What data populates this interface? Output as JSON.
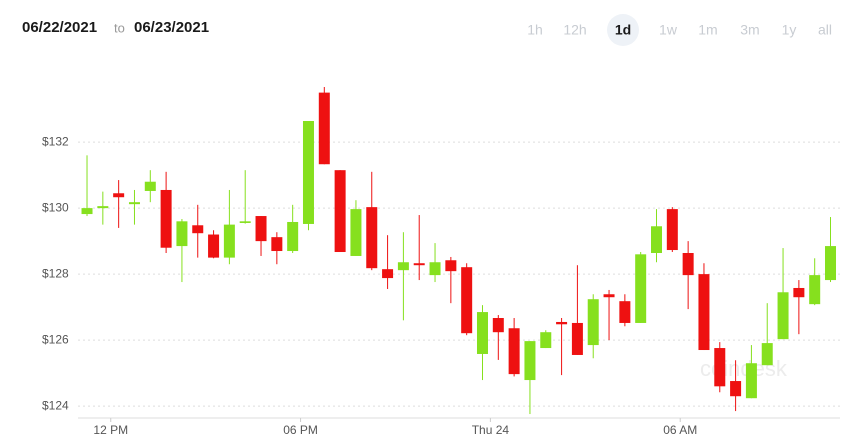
{
  "header": {
    "from": "06/22/2021",
    "separator": "to",
    "to": "06/23/2021"
  },
  "timeframes": [
    "1h",
    "12h",
    "1d",
    "1w",
    "1m",
    "3m",
    "1y",
    "all"
  ],
  "selected_timeframe": 2,
  "watermark": "coindesk",
  "chart_data": {
    "type": "candlestick",
    "up_color": "#86e01e",
    "down_color": "#ee1111",
    "grid": true,
    "open": [
      129.82,
      130.0,
      130.45,
      130.12,
      130.52,
      130.55,
      128.85,
      129.48,
      129.2,
      128.5,
      129.55,
      129.76,
      129.12,
      128.7,
      129.52,
      133.5,
      131.15,
      128.55,
      130.03,
      128.15,
      128.12,
      128.33,
      127.97,
      128.42,
      128.21,
      125.58,
      126.67,
      126.36,
      124.79,
      125.76,
      126.55,
      126.52,
      125.85,
      127.39,
      127.18,
      126.52,
      128.64,
      129.97,
      128.64,
      128.0,
      125.76,
      124.76,
      124.24,
      125.24,
      126.03,
      127.58,
      127.09,
      127.82
    ],
    "high": [
      131.6,
      130.5,
      130.85,
      130.55,
      131.15,
      131.1,
      129.67,
      130.1,
      129.33,
      130.55,
      131.15,
      129.76,
      129.27,
      130.1,
      132.64,
      133.67,
      131.15,
      130.24,
      131.1,
      129.18,
      129.27,
      129.79,
      128.94,
      128.52,
      128.33,
      127.06,
      126.76,
      126.67,
      125.97,
      126.3,
      126.67,
      128.27,
      127.39,
      127.52,
      127.39,
      128.67,
      129.97,
      130.03,
      129.0,
      128.33,
      125.94,
      125.39,
      125.85,
      127.12,
      128.79,
      127.82,
      128.48,
      129.73
    ],
    "low": [
      129.76,
      129.5,
      129.4,
      129.5,
      130.18,
      128.64,
      127.76,
      128.5,
      128.48,
      128.3,
      129.53,
      128.55,
      128.3,
      128.64,
      129.33,
      131.33,
      128.67,
      128.55,
      128.12,
      127.55,
      126.6,
      127.82,
      127.76,
      127.12,
      126.15,
      124.79,
      125.4,
      124.9,
      123.76,
      125.76,
      124.94,
      125.55,
      125.45,
      126.0,
      126.42,
      126.52,
      128.36,
      128.67,
      126.94,
      125.7,
      124.42,
      123.85,
      124.24,
      125.24,
      126.03,
      126.18,
      127.06,
      127.76
    ],
    "close": [
      130.0,
      130.06,
      130.33,
      130.18,
      130.8,
      128.8,
      129.6,
      129.24,
      128.5,
      129.5,
      129.6,
      129.0,
      128.7,
      129.58,
      132.64,
      131.33,
      128.67,
      129.97,
      128.18,
      127.88,
      128.36,
      128.27,
      128.36,
      128.09,
      126.21,
      126.85,
      126.24,
      124.97,
      125.97,
      126.24,
      126.48,
      125.55,
      127.24,
      127.3,
      126.52,
      128.6,
      129.45,
      128.73,
      127.97,
      125.7,
      124.6,
      124.3,
      125.3,
      125.91,
      127.45,
      127.3,
      127.97,
      128.85
    ],
    "xlim": [
      -0.57,
      47.6
    ],
    "xticks": [
      {
        "value": 1.5,
        "label": "12 PM"
      },
      {
        "value": 13.5,
        "label": "06 PM"
      },
      {
        "value": 25.5,
        "label": "Thu 24"
      },
      {
        "value": 37.5,
        "label": "06 AM"
      }
    ],
    "ylim": [
      123.64,
      134.64
    ],
    "yticks": [
      {
        "value": 124,
        "label": "$124"
      },
      {
        "value": 126,
        "label": "$126"
      },
      {
        "value": 128,
        "label": "$128"
      },
      {
        "value": 130,
        "label": "$130"
      },
      {
        "value": 132,
        "label": "$132"
      }
    ]
  }
}
